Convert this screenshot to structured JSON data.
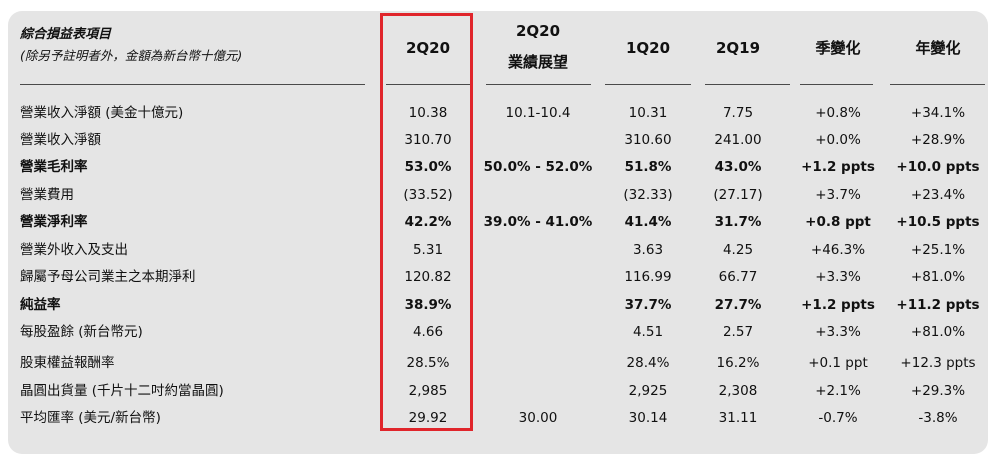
{
  "header": {
    "title": "綜合損益表項目",
    "subtitle": "(除另予註明者外，金額為新台幣十億元)",
    "columns": [
      {
        "line1": "2Q20",
        "line2": ""
      },
      {
        "line1": "2Q20",
        "line2": "業績展望"
      },
      {
        "line1": "1Q20",
        "line2": ""
      },
      {
        "line1": "2Q19",
        "line2": ""
      },
      {
        "line1": "季變化",
        "line2": ""
      },
      {
        "line1": "年變化",
        "line2": ""
      }
    ]
  },
  "rows": [
    {
      "label": "營業收入淨額 (美金十億元)",
      "bold": false,
      "values": [
        "10.38",
        "10.1-10.4",
        "10.31",
        "7.75",
        "+0.8%",
        "+34.1%"
      ]
    },
    {
      "label": "營業收入淨額",
      "bold": false,
      "values": [
        "310.70",
        "",
        "310.60",
        "241.00",
        "+0.0%",
        "+28.9%"
      ]
    },
    {
      "label": "營業毛利率",
      "bold": true,
      "values": [
        "53.0%",
        "50.0% - 52.0%",
        "51.8%",
        "43.0%",
        "+1.2 ppts",
        "+10.0 ppts"
      ]
    },
    {
      "label": "營業費用",
      "bold": false,
      "values": [
        "(33.52)",
        "",
        "(32.33)",
        "(27.17)",
        "+3.7%",
        "+23.4%"
      ]
    },
    {
      "label": "營業淨利率",
      "bold": true,
      "values": [
        "42.2%",
        "39.0% - 41.0%",
        "41.4%",
        "31.7%",
        "+0.8 ppt",
        "+10.5 ppts"
      ]
    },
    {
      "label": "營業外收入及支出",
      "bold": false,
      "values": [
        "5.31",
        "",
        "3.63",
        "4.25",
        "+46.3%",
        "+25.1%"
      ]
    },
    {
      "label": "歸屬予母公司業主之本期淨利",
      "bold": false,
      "values": [
        "120.82",
        "",
        "116.99",
        "66.77",
        "+3.3%",
        "+81.0%"
      ]
    },
    {
      "label": "純益率",
      "bold": true,
      "values": [
        "38.9%",
        "",
        "37.7%",
        "27.7%",
        "+1.2 ppts",
        "+11.2 ppts"
      ]
    },
    {
      "label": "每股盈餘 (新台幣元)",
      "bold": false,
      "values": [
        "4.66",
        "",
        "4.51",
        "2.57",
        "+3.3%",
        "+81.0%"
      ]
    },
    {
      "label": "股東權益報酬率",
      "bold": false,
      "values": [
        "28.5%",
        "",
        "28.4%",
        "16.2%",
        "+0.1 ppt",
        "+12.3 ppts"
      ]
    },
    {
      "label": "晶圓出貨量 (千片十二吋約當晶圓)",
      "bold": false,
      "values": [
        "2,985",
        "",
        "2,925",
        "2,308",
        "+2.1%",
        "+29.3%"
      ]
    },
    {
      "label": "平均匯率 (美元/新台幣)",
      "bold": false,
      "values": [
        "29.92",
        "30.00",
        "30.14",
        "31.11",
        "-0.7%",
        "-3.8%"
      ]
    }
  ],
  "colors": {
    "panel": "#e5e5e5",
    "highlight_border": "#e0252b",
    "rule": "#4a4a4a"
  }
}
